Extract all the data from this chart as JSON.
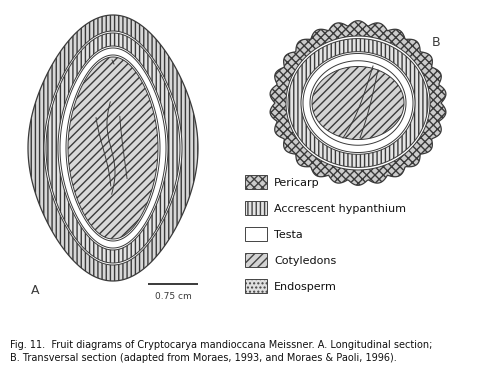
{
  "caption_line1": "Fig. 11.  Fruit diagrams of Cryptocarya mandioccana Meissner. A. Longitudinal section;",
  "caption_line2": "B. Transversal section (adapted from Moraes, 1993, and Moraes & Paoli, 1996).",
  "label_A": "A",
  "label_B": "B",
  "scale_bar_label": "0.75 cm",
  "legend_items": [
    {
      "label": "Pericarp",
      "hatch": "xxxx",
      "fc": "#c8c8c8"
    },
    {
      "label": "Accrescent hypanthium",
      "hatch": "||||",
      "fc": "#e8e8e8"
    },
    {
      "label": "Testa",
      "hatch": "",
      "fc": "#ffffff"
    },
    {
      "label": "Cotyledons",
      "hatch": "////",
      "fc": "#d4d4d4"
    },
    {
      "label": "Endosperm",
      "hatch": "....",
      "fc": "#e0e0e0"
    }
  ],
  "bg_color": "#ffffff",
  "line_color": "#3a3a3a",
  "caption_fontsize": 7.0
}
